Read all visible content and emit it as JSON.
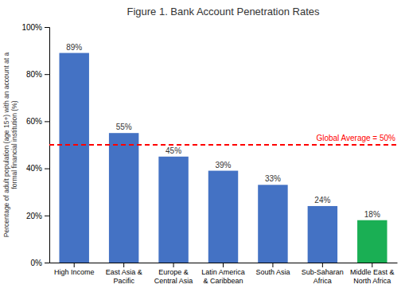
{
  "chart_data": {
    "type": "bar",
    "title": "Figure 1. Bank Account Penetration Rates",
    "categories": [
      "High Income",
      "East Asia &\nPacific",
      "Europe &\nCentral Asia",
      "Latin America\n& Caribbean",
      "South Asia",
      "Sub-Saharan\nAfrica",
      "Middle East &\nNorth Africa"
    ],
    "values": [
      89,
      55,
      45,
      39,
      33,
      24,
      18
    ],
    "value_labels": [
      "89%",
      "55%",
      "45%",
      "39%",
      "33%",
      "24%",
      "18%"
    ],
    "data_labels": true,
    "colors": [
      "#4472C4",
      "#4472C4",
      "#4472C4",
      "#4472C4",
      "#4472C4",
      "#4472C4",
      "#1AAF54"
    ],
    "ylabel": "Percentage of adult population (age 15+) with an account at a\nformal financial institution (%)",
    "ylim": [
      0,
      100
    ],
    "yticks": [
      {
        "value": 0,
        "label": "0%"
      },
      {
        "value": 20,
        "label": "20%"
      },
      {
        "value": 40,
        "label": "40%"
      },
      {
        "value": 60,
        "label": "60%"
      },
      {
        "value": 80,
        "label": "80%"
      },
      {
        "value": 100,
        "label": "100%"
      }
    ],
    "grid": false,
    "annotations": [
      {
        "y": 50,
        "label": "Global Average = 50%",
        "color": "#FF0000",
        "line_style": "dashed"
      }
    ]
  }
}
